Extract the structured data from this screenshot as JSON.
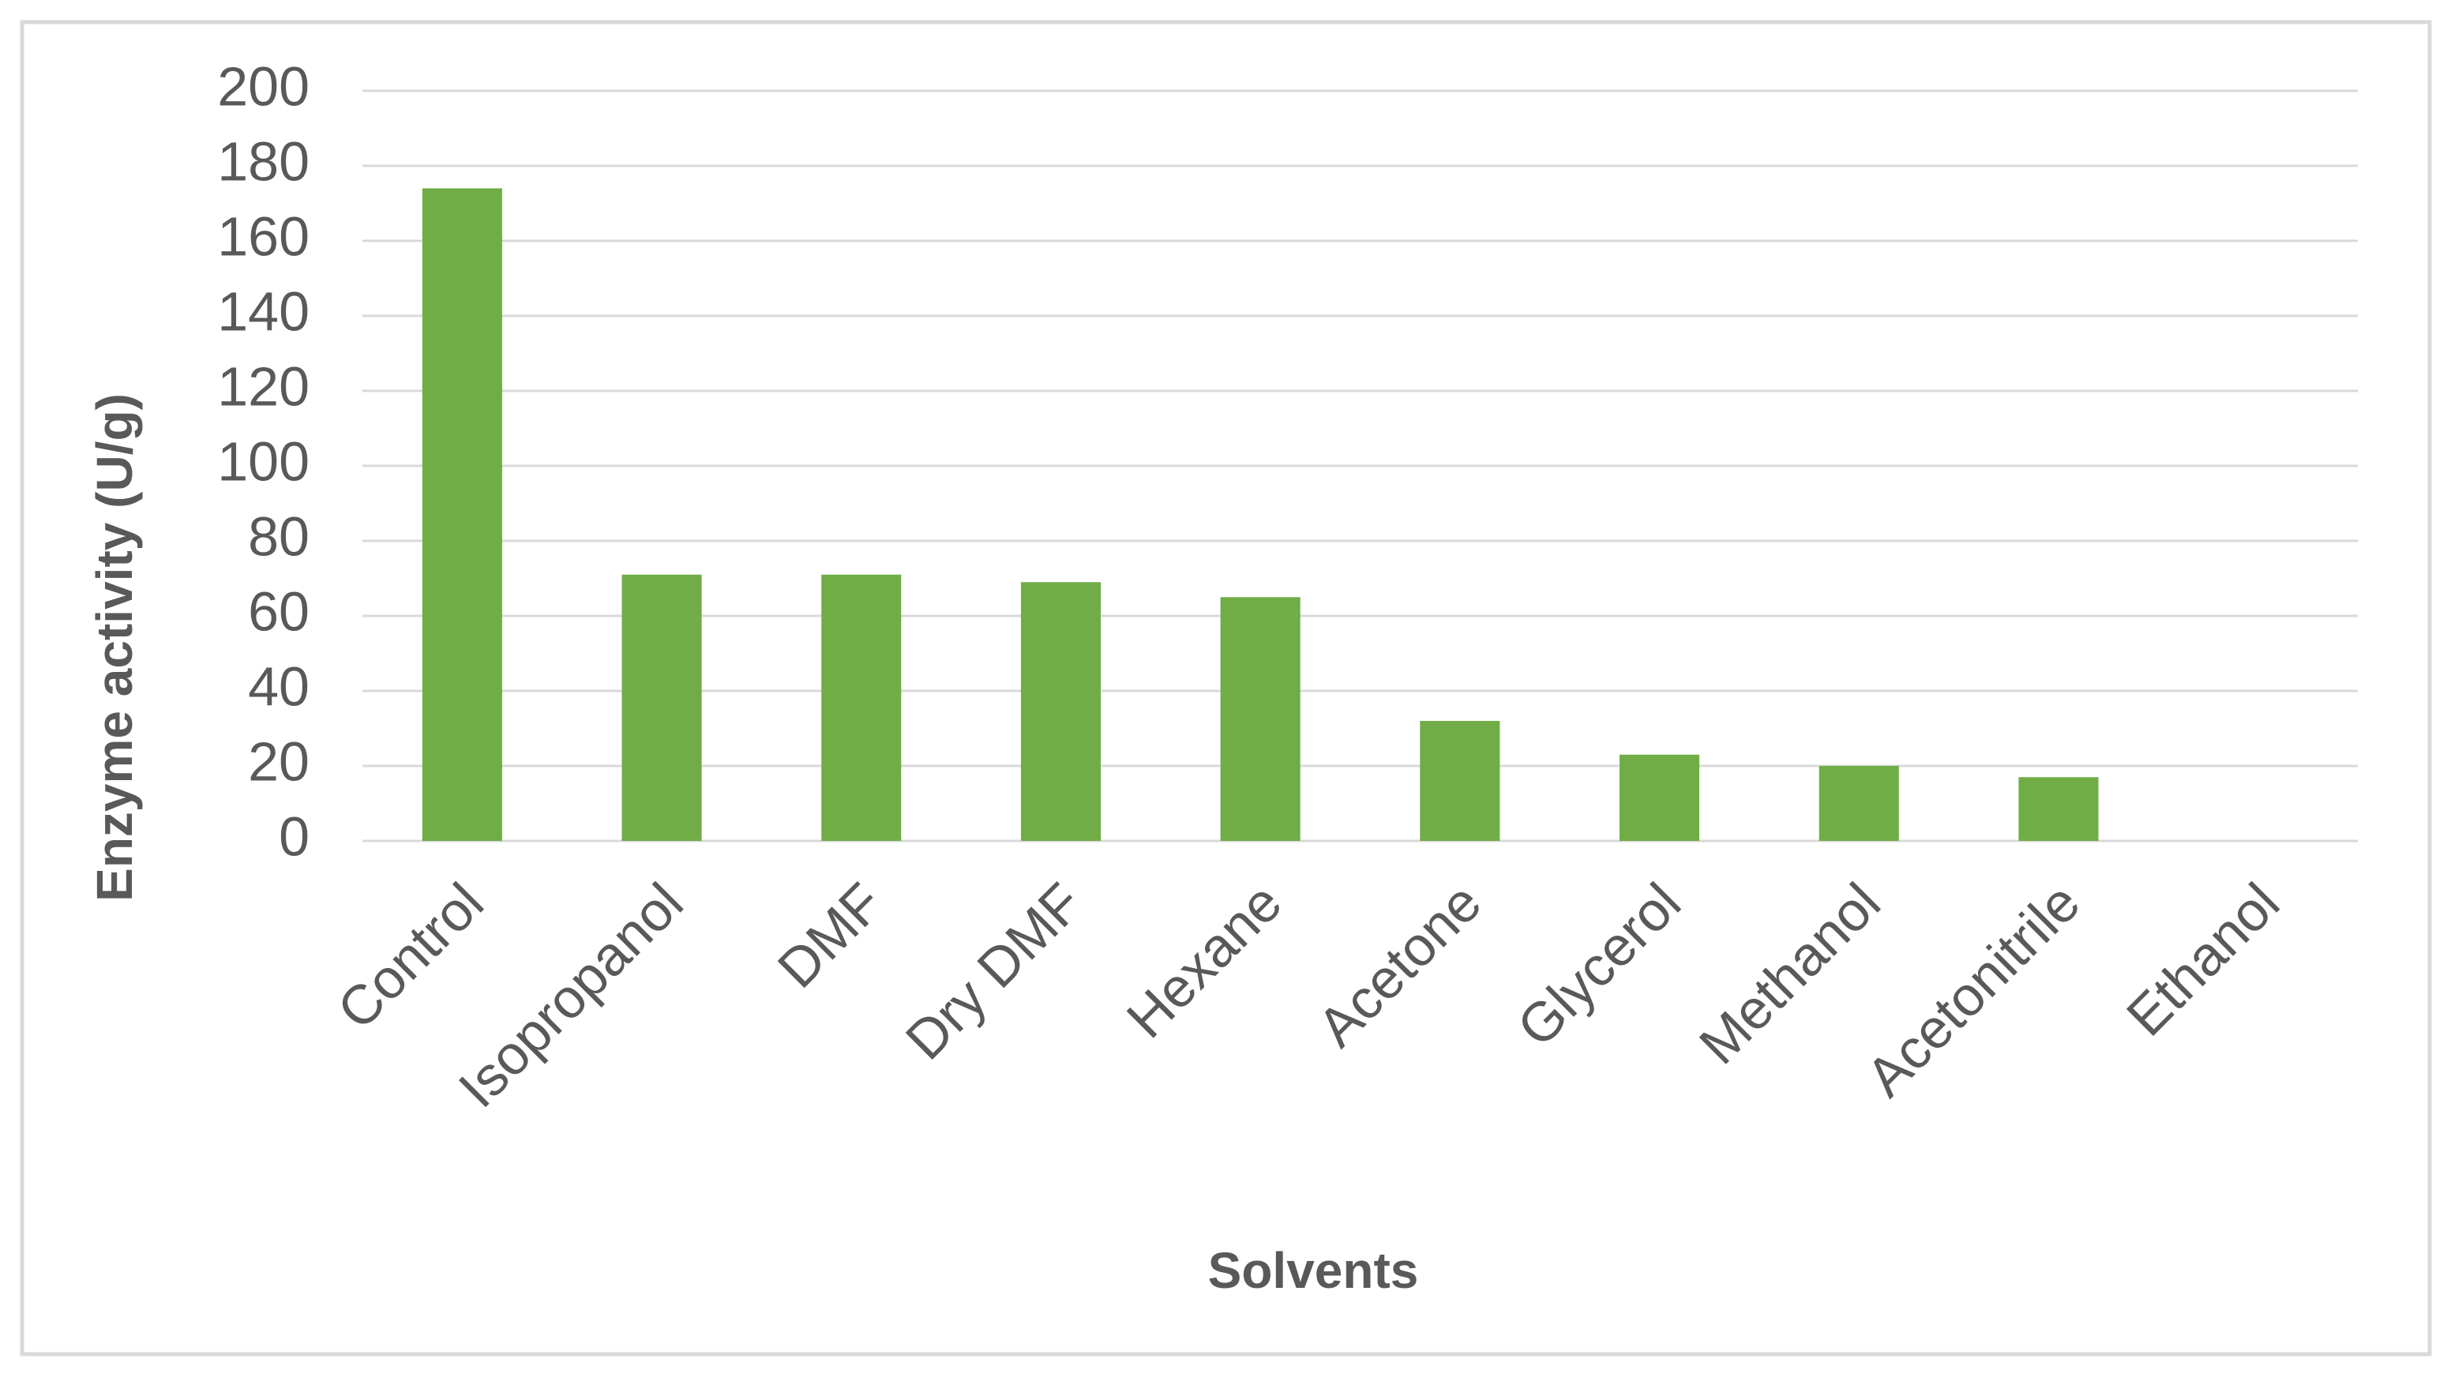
{
  "chart_data": {
    "type": "bar",
    "x_label": "Solvents",
    "y_label": "Enzyme activity (U/g)",
    "categories": [
      "Control",
      "Isopropanol",
      "DMF",
      "Dry DMF",
      "Hexane",
      "Acetone",
      "Glycerol",
      "Methanol",
      "Acetonitrile",
      "Ethanol"
    ],
    "values": [
      174,
      71,
      71,
      69,
      65,
      32,
      23,
      20,
      17,
      0
    ],
    "color": "#70ad47",
    "ylim": [
      0,
      200
    ],
    "yticks": [
      0,
      20,
      40,
      60,
      80,
      100,
      120,
      140,
      160,
      180,
      200
    ],
    "grid": true
  }
}
